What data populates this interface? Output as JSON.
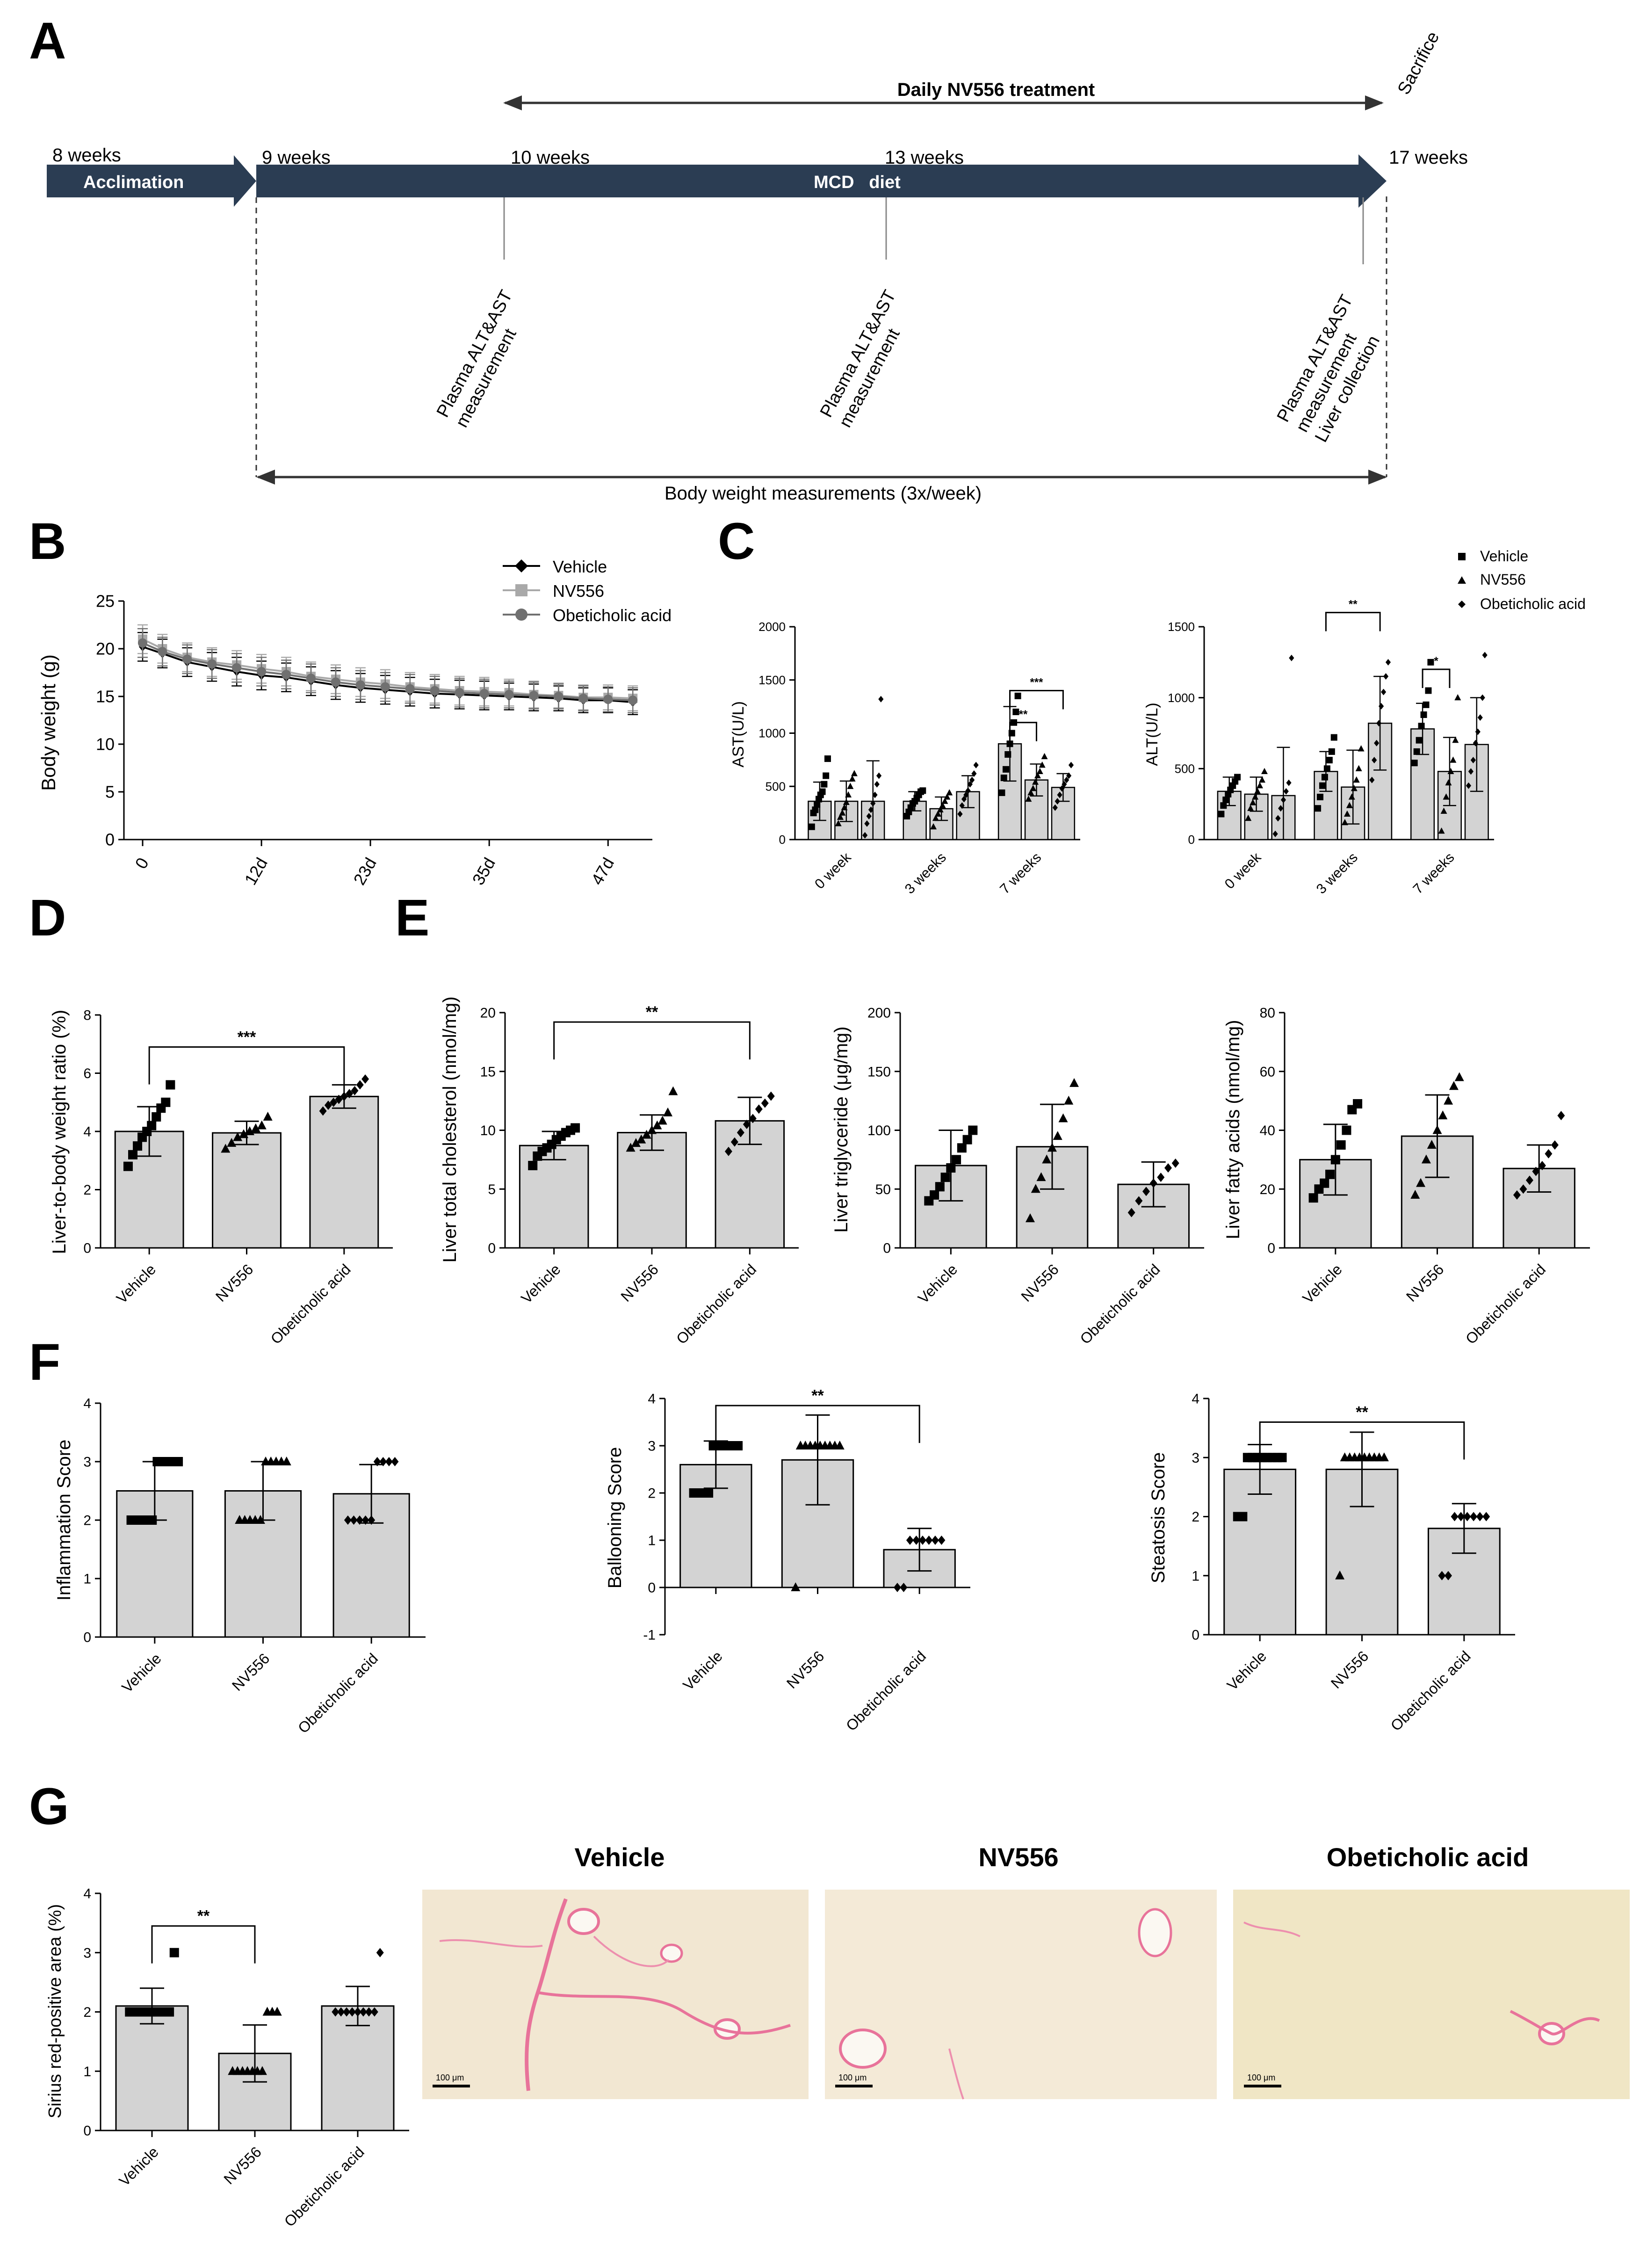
{
  "colors": {
    "bar_fill": "#d3d3d3",
    "ink": "#000000",
    "arrow": "#2b3d53",
    "stain_bg": "#f2e7d2",
    "stain_fiber": "#e8739a"
  },
  "panel_a": {
    "letter": "A",
    "daily_treatment": "Daily NV556 treatment",
    "sacrifice": "Sacrifice",
    "weeks": [
      "8 weeks",
      "9 weeks",
      "10 weeks",
      "13 weeks",
      "17 weeks"
    ],
    "acclimation": "Acclimation",
    "diet": "MCD   diet",
    "plasma_label": "Plasma ALT&AST",
    "measurement_label": "measurement",
    "liver_collection": "Liver collection",
    "body_weight": "Body weight measurements (3x/week)"
  },
  "chart_data": [
    {
      "id": "B",
      "letter": "B",
      "type": "line",
      "title": "",
      "xlabel": "",
      "ylabel": "Body weight (g)",
      "ylim": [
        0,
        25
      ],
      "yticks": [
        0,
        5,
        10,
        15,
        20,
        25
      ],
      "xlim": [
        0,
        51
      ],
      "xticks": [
        0,
        12,
        23,
        35,
        47
      ],
      "xticklabels": [
        "0",
        "12d",
        "23d",
        "35d",
        "47d"
      ],
      "x": [
        0,
        2,
        4.5,
        7,
        9.5,
        12,
        14.5,
        17,
        19.5,
        22,
        24.5,
        27,
        29.5,
        32,
        34.5,
        37,
        39.5,
        42,
        44.5,
        47,
        49.5
      ],
      "series": [
        {
          "name": "Vehicle",
          "marker": "diamond",
          "color": "#000000",
          "values": [
            20.2,
            19.5,
            18.6,
            18.1,
            17.6,
            17.2,
            17.0,
            16.6,
            16.2,
            15.9,
            15.7,
            15.5,
            15.3,
            15.2,
            15.1,
            15.0,
            14.9,
            14.8,
            14.6,
            14.6,
            14.4
          ],
          "sd": [
            1.5,
            1.5,
            1.5,
            1.5,
            1.5,
            1.5,
            1.5,
            1.5,
            1.5,
            1.5,
            1.5,
            1.5,
            1.5,
            1.5,
            1.5,
            1.4,
            1.4,
            1.3,
            1.3,
            1.3,
            1.3
          ]
        },
        {
          "name": "NV556",
          "marker": "square",
          "color": "#a9a9a9",
          "values": [
            21.0,
            20.0,
            19.1,
            18.6,
            18.3,
            17.9,
            17.6,
            17.1,
            16.8,
            16.5,
            16.3,
            16.0,
            15.8,
            15.6,
            15.5,
            15.4,
            15.2,
            15.1,
            14.9,
            14.9,
            14.8
          ],
          "sd": [
            1.5,
            1.5,
            1.5,
            1.5,
            1.5,
            1.5,
            1.5,
            1.5,
            1.5,
            1.5,
            1.5,
            1.5,
            1.5,
            1.5,
            1.5,
            1.4,
            1.4,
            1.3,
            1.3,
            1.3,
            1.3
          ]
        },
        {
          "name": "Obeticholic acid",
          "marker": "circle",
          "color": "#707070",
          "values": [
            20.6,
            19.7,
            18.9,
            18.4,
            18.0,
            17.6,
            17.3,
            16.9,
            16.5,
            16.2,
            16.0,
            15.8,
            15.6,
            15.4,
            15.3,
            15.2,
            15.1,
            15.0,
            14.8,
            14.7,
            14.6
          ],
          "sd": [
            1.5,
            1.5,
            1.5,
            1.5,
            1.5,
            1.5,
            1.5,
            1.5,
            1.5,
            1.5,
            1.5,
            1.5,
            1.5,
            1.5,
            1.5,
            1.4,
            1.4,
            1.3,
            1.3,
            1.3,
            1.3
          ]
        }
      ]
    },
    {
      "id": "C1",
      "letter": "C",
      "type": "bar",
      "ylabel": "AST(U/L)",
      "ylim": [
        0,
        2000
      ],
      "yticks": [
        0,
        500,
        1000,
        1500,
        2000
      ],
      "categories": [
        "0 week",
        "3 weeks",
        "7 weeks"
      ],
      "series": [
        {
          "name": "Vehicle",
          "marker": "square",
          "values": [
            360,
            360,
            900
          ],
          "sd": [
            180,
            90,
            350
          ],
          "points": [
            [
              120,
              250,
              280,
              330,
              380,
              420,
              450,
              520,
              600,
              760
            ],
            [
              220,
              260,
              300,
              340,
              360,
              390,
              420,
              450,
              460
            ],
            [
              440,
              580,
              660,
              800,
              900,
              1000,
              1100,
              1200,
              1350
            ]
          ]
        },
        {
          "name": "NV556",
          "marker": "triangle",
          "values": [
            360,
            290,
            560
          ],
          "sd": [
            190,
            110,
            150
          ],
          "points": [
            [
              150,
              210,
              250,
              300,
              350,
              420,
              500,
              570,
              620
            ],
            [
              120,
              200,
              240,
              280,
              320,
              360,
              400,
              440
            ],
            [
              380,
              440,
              480,
              540,
              600,
              640,
              700,
              780
            ]
          ]
        },
        {
          "name": "Obeticholic acid",
          "marker": "diamond",
          "values": [
            360,
            450,
            490
          ],
          "sd": [
            380,
            150,
            130
          ],
          "points": [
            [
              40,
              150,
              220,
              280,
              340,
              420,
              520,
              600,
              1320
            ],
            [
              240,
              320,
              380,
              420,
              460,
              520,
              560,
              620,
              700
            ],
            [
              300,
              360,
              420,
              480,
              520,
              560,
              600,
              700
            ]
          ]
        }
      ],
      "significance": [
        {
          "group": 2,
          "from": 0,
          "to": 1,
          "label": "**",
          "y": 1100
        },
        {
          "group": 2,
          "from": 0,
          "to": 2,
          "label": "***",
          "y": 1400
        }
      ]
    },
    {
      "id": "C2",
      "type": "bar",
      "ylabel": "ALT(U/L)",
      "ylim": [
        0,
        1500
      ],
      "yticks": [
        0,
        500,
        1000,
        1500
      ],
      "categories": [
        "0 week",
        "3 weeks",
        "7 weeks"
      ],
      "legend": [
        "Vehicle",
        "NV556",
        "Obeticholic acid"
      ],
      "series": [
        {
          "name": "Vehicle",
          "marker": "square",
          "values": [
            340,
            480,
            780
          ],
          "sd": [
            100,
            140,
            180
          ],
          "points": [
            [
              180,
              240,
              280,
              320,
              350,
              380,
              410,
              440
            ],
            [
              220,
              300,
              380,
              440,
              500,
              560,
              620,
              720
            ],
            [
              540,
              620,
              700,
              800,
              880,
              950,
              1050,
              1250
            ]
          ]
        },
        {
          "name": "NV556",
          "marker": "triangle",
          "values": [
            320,
            370,
            480
          ],
          "sd": [
            120,
            260,
            240
          ],
          "points": [
            [
              150,
              220,
              260,
              300,
              340,
              380,
              420,
              480
            ],
            [
              120,
              180,
              240,
              300,
              360,
              420,
              500,
              640
            ],
            [
              60,
              200,
              300,
              400,
              480,
              560,
              700,
              1000
            ]
          ]
        },
        {
          "name": "Obeticholic acid",
          "marker": "diamond",
          "values": [
            310,
            820,
            670
          ],
          "sd": [
            340,
            330,
            330
          ],
          "points": [
            [
              40,
              150,
              220,
              280,
              340,
              400,
              1280
            ],
            [
              420,
              560,
              680,
              820,
              940,
              1040,
              1150,
              1250
            ],
            [
              380,
              480,
              560,
              680,
              760,
              860,
              1000,
              1300
            ]
          ]
        }
      ],
      "significance": [
        {
          "group": 1,
          "from": 0,
          "to": 2,
          "label": "**",
          "y": 1600
        },
        {
          "group": 2,
          "from": 0,
          "to": 1,
          "label": "*",
          "y": 1200
        }
      ]
    },
    {
      "id": "D",
      "letter": "D",
      "type": "bar",
      "ylabel": "Liver-to-body weight ratio (%)",
      "ylim": [
        0,
        8
      ],
      "yticks": [
        0,
        2,
        4,
        6,
        8
      ],
      "categories": [
        "Vehicle",
        "NV556",
        "Obeticholic acid"
      ],
      "markers": [
        "square",
        "triangle",
        "diamond"
      ],
      "values": [
        4.0,
        3.95,
        5.2
      ],
      "sd": [
        0.85,
        0.4,
        0.4
      ],
      "points": [
        [
          2.8,
          3.2,
          3.5,
          3.8,
          4.0,
          4.2,
          4.5,
          4.8,
          5.0,
          5.6
        ],
        [
          3.4,
          3.6,
          3.8,
          3.9,
          4.0,
          4.1,
          4.2,
          4.5
        ],
        [
          4.7,
          4.9,
          5.0,
          5.1,
          5.2,
          5.3,
          5.4,
          5.6,
          5.8
        ]
      ],
      "significance": [
        {
          "from": 0,
          "to": 2,
          "label": "***",
          "y": 6.9
        }
      ]
    },
    {
      "id": "E1",
      "letter": "E",
      "type": "bar",
      "ylabel": "Liver total cholesterol (nmol/mg)",
      "ylim": [
        0,
        20
      ],
      "yticks": [
        0,
        5,
        10,
        15,
        20
      ],
      "categories": [
        "Vehicle",
        "NV556",
        "Obeticholic acid"
      ],
      "markers": [
        "square",
        "triangle",
        "diamond"
      ],
      "values": [
        8.7,
        9.8,
        10.8
      ],
      "sd": [
        1.2,
        1.5,
        2.0
      ],
      "points": [
        [
          7.0,
          7.8,
          8.2,
          8.5,
          8.8,
          9.2,
          9.5,
          9.8,
          10.0,
          10.2
        ],
        [
          8.5,
          8.9,
          9.2,
          9.6,
          10.0,
          10.4,
          10.8,
          11.5,
          13.3
        ],
        [
          8.2,
          9.0,
          9.8,
          10.5,
          11.0,
          11.8,
          12.3,
          12.9
        ]
      ],
      "significance": [
        {
          "from": 0,
          "to": 2,
          "label": "**",
          "y": 19.2
        }
      ]
    },
    {
      "id": "E2",
      "type": "bar",
      "ylabel": "Liver triglyceride (μg/mg)",
      "ylim": [
        0,
        200
      ],
      "yticks": [
        0,
        50,
        100,
        150,
        200
      ],
      "categories": [
        "Vehicle",
        "NV556",
        "Obeticholic acid"
      ],
      "markers": [
        "square",
        "triangle",
        "diamond"
      ],
      "values": [
        70,
        86,
        54
      ],
      "sd": [
        30,
        36,
        19
      ],
      "points": [
        [
          40,
          45,
          52,
          60,
          68,
          75,
          85,
          92,
          100
        ],
        [
          25,
          50,
          60,
          75,
          85,
          95,
          110,
          125,
          140
        ],
        [
          30,
          40,
          48,
          55,
          60,
          68,
          72
        ]
      ],
      "significance": []
    },
    {
      "id": "E3",
      "type": "bar",
      "ylabel": "Liver fatty acids (nmol/mg)",
      "ylim": [
        0,
        80
      ],
      "yticks": [
        0,
        20,
        40,
        60,
        80
      ],
      "categories": [
        "Vehicle",
        "NV556",
        "Obeticholic acid"
      ],
      "markers": [
        "square",
        "triangle",
        "diamond"
      ],
      "values": [
        30,
        38,
        27
      ],
      "sd": [
        12,
        14,
        8
      ],
      "points": [
        [
          17,
          20,
          22,
          25,
          30,
          35,
          40,
          47,
          49
        ],
        [
          18,
          22,
          30,
          35,
          40,
          45,
          50,
          55,
          58
        ],
        [
          18,
          20,
          23,
          26,
          28,
          32,
          35,
          45
        ]
      ],
      "significance": []
    },
    {
      "id": "F1",
      "letter": "F",
      "type": "bar",
      "ylabel": "Inflammation Score",
      "ylim": [
        0,
        4
      ],
      "yticks": [
        0,
        1,
        2,
        3,
        4
      ],
      "categories": [
        "Vehicle",
        "NV556",
        "Obeticholic acid"
      ],
      "markers": [
        "square",
        "triangle",
        "diamond"
      ],
      "values": [
        2.5,
        2.5,
        2.45
      ],
      "sd": [
        0.5,
        0.5,
        0.5
      ],
      "points": [
        [
          2,
          2,
          2,
          2,
          2,
          3,
          3,
          3,
          3,
          3
        ],
        [
          2,
          2,
          2,
          2,
          2,
          3,
          3,
          3,
          3,
          3
        ],
        [
          2,
          2,
          2,
          2,
          2,
          3,
          3,
          3,
          3
        ]
      ],
      "significance": []
    },
    {
      "id": "F2",
      "type": "bar",
      "ylabel": "Ballooning Score",
      "ylim": [
        -1,
        4
      ],
      "yticks": [
        -1,
        0,
        1,
        2,
        3,
        4
      ],
      "categories": [
        "Vehicle",
        "NV556",
        "Obeticholic acid"
      ],
      "markers": [
        "square",
        "triangle",
        "diamond"
      ],
      "values": [
        2.6,
        2.7,
        0.8
      ],
      "sd": [
        0.5,
        0.95,
        0.45
      ],
      "points": [
        [
          2,
          2,
          2,
          2,
          3,
          3,
          3,
          3,
          3,
          3
        ],
        [
          0,
          3,
          3,
          3,
          3,
          3,
          3,
          3,
          3,
          3
        ],
        [
          0,
          0,
          1,
          1,
          1,
          1,
          1,
          1
        ]
      ],
      "significance": [
        {
          "from": 0,
          "to": 2,
          "label": "**",
          "y": 3.85
        }
      ]
    },
    {
      "id": "F3",
      "type": "bar",
      "ylabel": "Steatosis Score",
      "ylim": [
        0,
        4
      ],
      "yticks": [
        0,
        1,
        2,
        3,
        4
      ],
      "categories": [
        "Vehicle",
        "NV556",
        "Obeticholic acid"
      ],
      "markers": [
        "square",
        "triangle",
        "diamond"
      ],
      "values": [
        2.8,
        2.8,
        1.8
      ],
      "sd": [
        0.42,
        0.63,
        0.42
      ],
      "points": [
        [
          2,
          2,
          3,
          3,
          3,
          3,
          3,
          3,
          3,
          3
        ],
        [
          1,
          3,
          3,
          3,
          3,
          3,
          3,
          3,
          3,
          3
        ],
        [
          1,
          1,
          2,
          2,
          2,
          2,
          2,
          2
        ]
      ],
      "significance": [
        {
          "from": 0,
          "to": 2,
          "label": "**",
          "y": 3.6
        }
      ]
    },
    {
      "id": "G",
      "letter": "G",
      "type": "bar",
      "ylabel": "Sirius red-positive area (%)",
      "ylim": [
        0,
        4
      ],
      "yticks": [
        0,
        1,
        2,
        3,
        4
      ],
      "categories": [
        "Vehicle",
        "NV556",
        "Obeticholic acid"
      ],
      "markers": [
        "square",
        "triangle",
        "diamond"
      ],
      "values": [
        2.1,
        1.3,
        2.1
      ],
      "sd": [
        0.3,
        0.48,
        0.33
      ],
      "points": [
        [
          2,
          2,
          2,
          2,
          2,
          2,
          2,
          2,
          2,
          3
        ],
        [
          1,
          1,
          1,
          1,
          1,
          1,
          1,
          2,
          2,
          2
        ],
        [
          2,
          2,
          2,
          2,
          2,
          2,
          2,
          2,
          3
        ]
      ],
      "significance": [
        {
          "from": 0,
          "to": 1,
          "label": "**",
          "y": 3.45
        }
      ]
    }
  ],
  "panel_g_images": {
    "titles": [
      "Vehicle",
      "NV556",
      "Obeticholic acid"
    ],
    "scale_bar": "100 μm"
  }
}
